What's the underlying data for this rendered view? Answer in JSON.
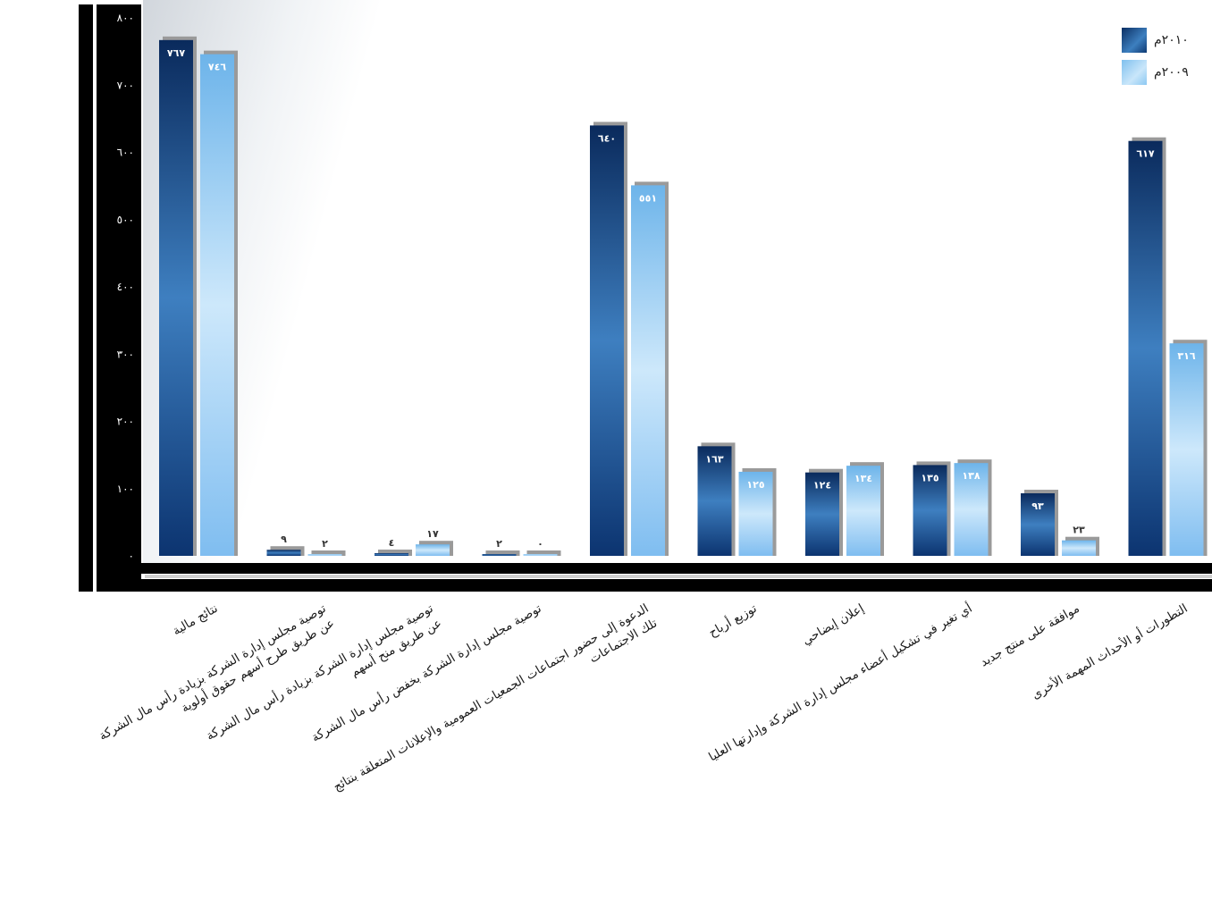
{
  "chart_data": {
    "type": "bar",
    "title": "",
    "xlabel": "",
    "ylabel": "",
    "ylim": [
      0,
      800
    ],
    "yticks": [
      "٠",
      "١٠٠",
      "٢٠٠",
      "٣٠٠",
      "٤٠٠",
      "٥٠٠",
      "٦٠٠",
      "٧٠٠",
      "٨٠٠"
    ],
    "ytick_values": [
      0,
      100,
      200,
      300,
      400,
      500,
      600,
      700,
      800
    ],
    "grid": false,
    "legend_position": "top-right",
    "categories": [
      "نتائج مالية",
      "توصية مجلس إدارة الشركة بزيادة رأس مال الشركة عن طريق طرح أسهم حقوق أولوية",
      "توصية مجلس إدارة الشركة بزيادة رأس مال الشركة عن طريق منح أسهم",
      "توصية مجلس إدارة الشركة بخفض رأس مال الشركة",
      "الدعوة إلى حضور اجتماعات الجمعيات العمومية والإعلانات المتعلقة بنتائج تلك الاجتماعات",
      "توزيع أرباح",
      "إعلان إيضاحي",
      "أي تغير في تشكيل أعضاء مجلس إدارة الشركة وإدارتها العليا",
      "موافقة على منتج جديد",
      "التطورات أو الأحداث المهمة الأخرى"
    ],
    "series": [
      {
        "name": "٢٠١٠م",
        "values": [
          767,
          9,
          4,
          2,
          640,
          163,
          124,
          135,
          93,
          617
        ],
        "labels": [
          "٧٦٧",
          "٩",
          "٤",
          "٢",
          "٦٤٠",
          "١٦٣",
          "١٢٤",
          "١٣٥",
          "٩٣",
          "٦١٧"
        ],
        "color": "#1b4f8f"
      },
      {
        "name": "٢٠٠٩م",
        "values": [
          746,
          2,
          17,
          0,
          551,
          125,
          134,
          138,
          23,
          316
        ],
        "labels": [
          "٧٤٦",
          "٢",
          "١٧",
          "٠",
          "٥٥١",
          "١٢٥",
          "١٣٤",
          "١٣٨",
          "٢٣",
          "٣١٦"
        ],
        "color": "#8cc8f2"
      }
    ]
  }
}
